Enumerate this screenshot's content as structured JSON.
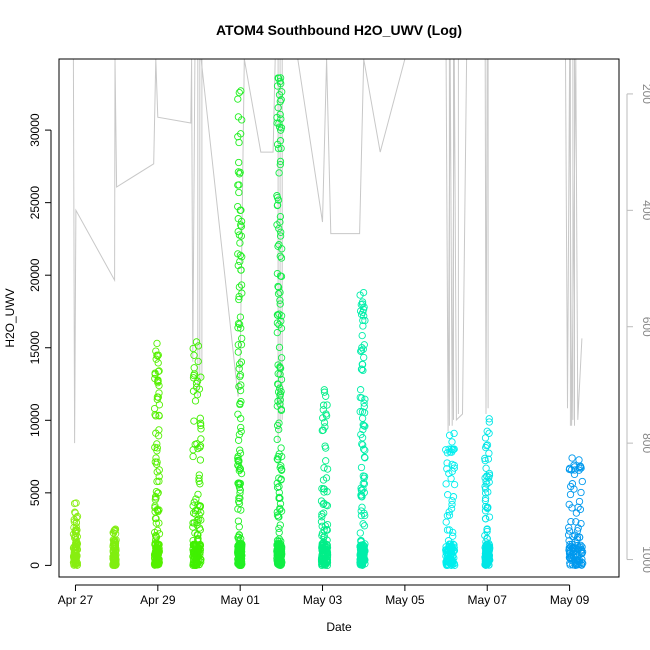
{
  "chart_data": {
    "type": "scatter",
    "title": "ATOM4 Southbound H2O_UWV (Log)",
    "xlabel": "Date",
    "ylabel": "H2O_UWV",
    "x_tick_labels": [
      "Apr 27",
      "Apr 29",
      "May 01",
      "May 03",
      "May 05",
      "May 07",
      "May 09"
    ],
    "x_tick_values": [
      0,
      2,
      4,
      6,
      8,
      10,
      12
    ],
    "xlim": [
      -0.4,
      13.2
    ],
    "y_ticks": [
      0,
      5000,
      10000,
      15000,
      20000,
      25000,
      30000
    ],
    "ylim": [
      -800,
      34900
    ],
    "right_axis": {
      "ticks": [
        200,
        400,
        600,
        800,
        1000
      ],
      "lim": [
        1030,
        140
      ],
      "color": "#bbbbbb"
    },
    "grid": false,
    "legend": "none",
    "scatter_clusters": [
      {
        "day": 0.0,
        "width": 0.1,
        "max": 4300,
        "color": "#88ee11"
      },
      {
        "day": 0.95,
        "width": 0.08,
        "max": 2500,
        "color": "#80ee10"
      },
      {
        "day": 1.98,
        "width": 0.12,
        "max": 15300,
        "color": "#55f000"
      },
      {
        "day": 2.95,
        "width": 0.2,
        "max": 15400,
        "color": "#40f000"
      },
      {
        "day": 3.99,
        "width": 0.1,
        "max": 32700,
        "color": "#22f022"
      },
      {
        "day": 4.95,
        "width": 0.12,
        "max": 33600,
        "color": "#11ee44"
      },
      {
        "day": 6.05,
        "width": 0.15,
        "max": 12100,
        "color": "#00ee88"
      },
      {
        "day": 6.97,
        "width": 0.12,
        "max": 18800,
        "color": "#00eeaa"
      },
      {
        "day": 9.1,
        "width": 0.22,
        "max": 9100,
        "color": "#00eeee"
      },
      {
        "day": 10.0,
        "width": 0.12,
        "max": 10100,
        "color": "#00e6e6"
      },
      {
        "day": 12.15,
        "width": 0.35,
        "max": 7400,
        "color": "#0099ee"
      }
    ],
    "altitude_line_color": "#c8c8c8"
  }
}
